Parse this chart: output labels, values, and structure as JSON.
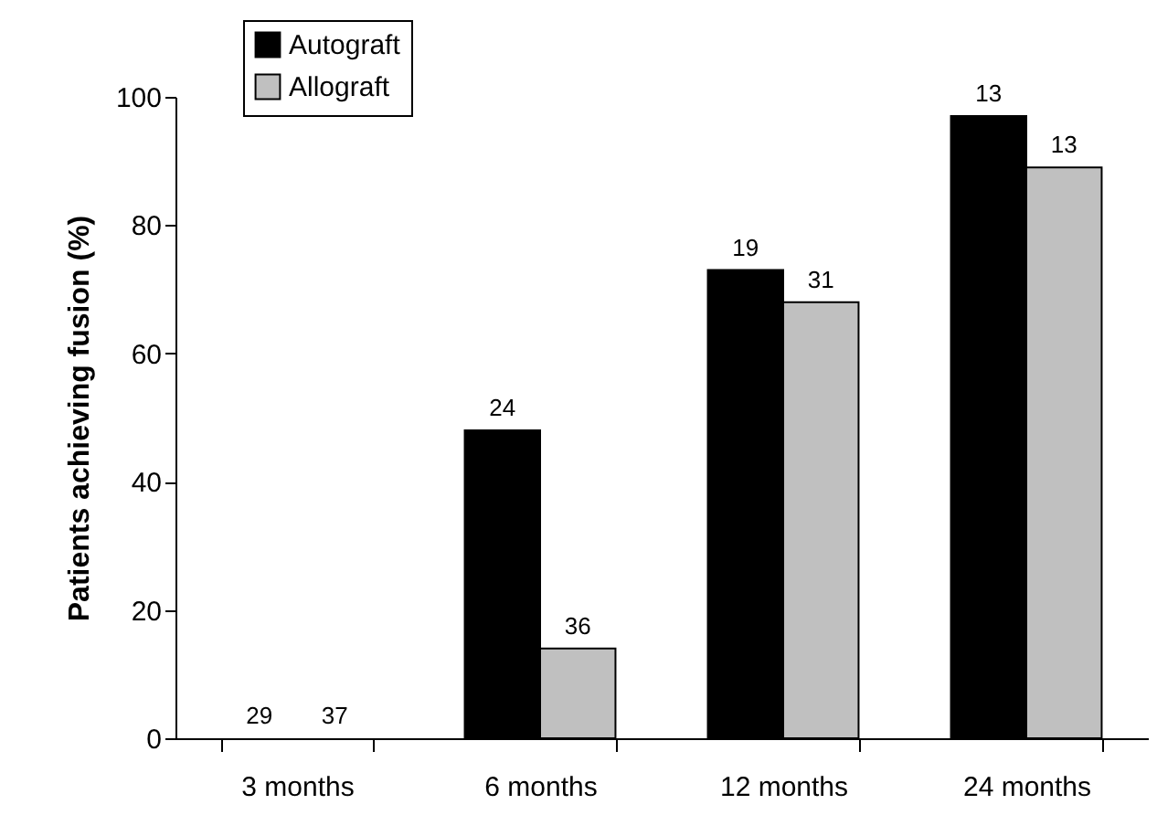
{
  "chart_data": {
    "type": "bar",
    "ylabel": "Patients achieving fusion (%)",
    "categories": [
      "3 months",
      "6 months",
      "12 months",
      "24 months"
    ],
    "series": [
      {
        "name": "Autograft",
        "color": "#000000",
        "values": [
          0,
          48,
          73,
          97
        ]
      },
      {
        "name": "Allograft",
        "color": "#c0c0c0",
        "values": [
          0,
          14,
          68,
          89
        ]
      }
    ],
    "annotations": [
      {
        "text": "29",
        "x": "3 months",
        "y": 0
      },
      {
        "text": "37",
        "x": "3 months",
        "y": 0
      },
      {
        "text": "24",
        "x": "6 months",
        "y": 48
      },
      {
        "text": "36",
        "x": "6 months",
        "y": 14
      },
      {
        "text": "19",
        "x": "12 months",
        "y": 73
      },
      {
        "text": "31",
        "x": "12 months",
        "y": 68
      },
      {
        "text": "13",
        "x": "24 months",
        "y": 97
      },
      {
        "text": "13",
        "x": "24 months",
        "y": 89
      }
    ],
    "ylim": [
      0,
      100
    ],
    "yticks": [
      0,
      20,
      40,
      60,
      80,
      100
    ],
    "grid": false,
    "legend": "top left"
  }
}
